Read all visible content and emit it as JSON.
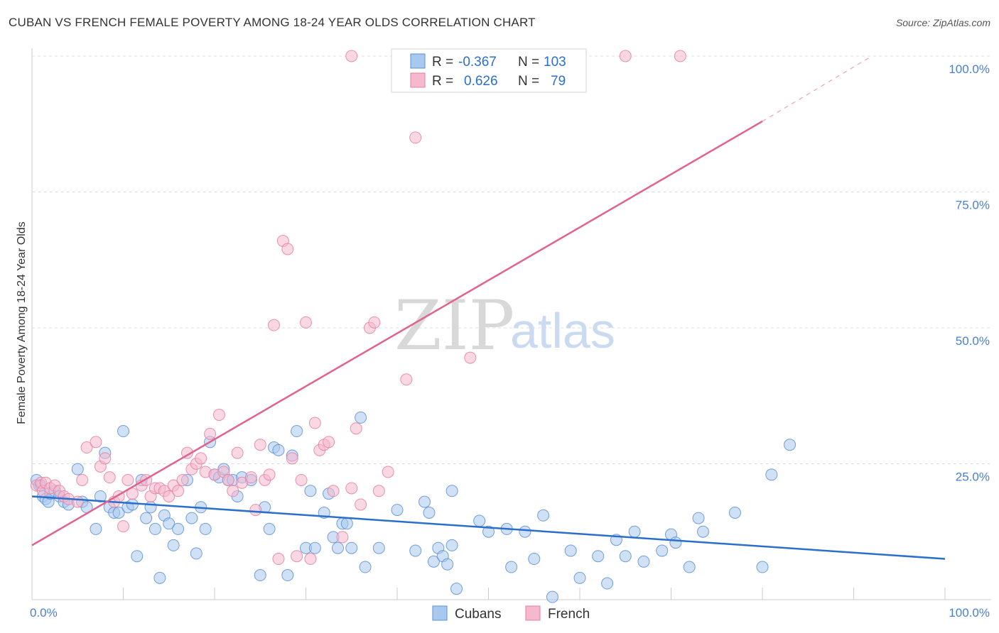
{
  "title": "CUBAN VS FRENCH FEMALE POVERTY AMONG 18-24 YEAR OLDS CORRELATION CHART",
  "source": "Source: ZipAtlas.com",
  "watermark": {
    "zip": "ZIP",
    "atlas": "atlas"
  },
  "colors": {
    "cubans_fill": "#a9c8ee",
    "cubans_stroke": "#5b8fd6",
    "cubans_line": "#2b6fcc",
    "french_fill": "#f5b8cc",
    "french_stroke": "#e57fa0",
    "french_line": "#e0628d",
    "tick_text": "#4a7fd0",
    "grid": "#dddddd"
  },
  "legend_top": {
    "rows": [
      {
        "r_label": "R =",
        "r_value": "-0.367",
        "n_label": "N =",
        "n_value": "103"
      },
      {
        "r_label": "R =",
        "r_value": "0.626",
        "n_label": "N =",
        "n_value": "79"
      }
    ]
  },
  "legend_bottom": {
    "items": [
      "Cubans",
      "French"
    ]
  },
  "chart_data": {
    "type": "scatter",
    "title": "CUBAN VS FRENCH FEMALE POVERTY AMONG 18-24 YEAR OLDS CORRELATION CHART",
    "xlabel": "",
    "ylabel": "Female Poverty Among 18-24 Year Olds",
    "xlim": [
      0,
      100
    ],
    "ylim": [
      0,
      100
    ],
    "x_tick_labels": [
      "0.0%",
      "100.0%"
    ],
    "y_tick_labels": [
      "25.0%",
      "50.0%",
      "75.0%",
      "100.0%"
    ],
    "y_ticks": [
      25,
      50,
      75,
      100
    ],
    "grid": true,
    "legend": "bottom-center",
    "series": [
      {
        "name": "Cubans",
        "R": -0.367,
        "N": 103,
        "trend": {
          "x": [
            0,
            100
          ],
          "y": [
            19,
            7.5
          ]
        },
        "points": [
          [
            0.5,
            22
          ],
          [
            0.8,
            21
          ],
          [
            1,
            21
          ],
          [
            1.2,
            19
          ],
          [
            1.5,
            18.5
          ],
          [
            1.8,
            18
          ],
          [
            2,
            19.5
          ],
          [
            2.5,
            20
          ],
          [
            3,
            19
          ],
          [
            3.5,
            18
          ],
          [
            4,
            17.5
          ],
          [
            5,
            24
          ],
          [
            5.5,
            18
          ],
          [
            6,
            17
          ],
          [
            7,
            13
          ],
          [
            7.5,
            19
          ],
          [
            8,
            27
          ],
          [
            8.5,
            17
          ],
          [
            9,
            16
          ],
          [
            9.5,
            16
          ],
          [
            10,
            31
          ],
          [
            10.5,
            17
          ],
          [
            11,
            17.5
          ],
          [
            11.5,
            8
          ],
          [
            12,
            22
          ],
          [
            12.5,
            15
          ],
          [
            13,
            17
          ],
          [
            13.5,
            13
          ],
          [
            14,
            4
          ],
          [
            14.5,
            15.5
          ],
          [
            15,
            14
          ],
          [
            15.5,
            10
          ],
          [
            16,
            13
          ],
          [
            17,
            22
          ],
          [
            17.5,
            15
          ],
          [
            18,
            8.5
          ],
          [
            18.5,
            17
          ],
          [
            19,
            13
          ],
          [
            19.5,
            29
          ],
          [
            20,
            23
          ],
          [
            20.5,
            22.5
          ],
          [
            21,
            24
          ],
          [
            21.5,
            22
          ],
          [
            22,
            22
          ],
          [
            22.5,
            19
          ],
          [
            23,
            22.5
          ],
          [
            24,
            22
          ],
          [
            25,
            4.5
          ],
          [
            25.5,
            17
          ],
          [
            26,
            13
          ],
          [
            26.5,
            28
          ],
          [
            27,
            27.5
          ],
          [
            28,
            4.5
          ],
          [
            28.5,
            26.5
          ],
          [
            29,
            31
          ],
          [
            30,
            9.5
          ],
          [
            30.5,
            20
          ],
          [
            31,
            9.5
          ],
          [
            32,
            16
          ],
          [
            32.5,
            19.5
          ],
          [
            33,
            11.5
          ],
          [
            33.5,
            9.5
          ],
          [
            34,
            14
          ],
          [
            34.5,
            14
          ],
          [
            35,
            9.5
          ],
          [
            36,
            33.5
          ],
          [
            36.5,
            6
          ],
          [
            38,
            9.5
          ],
          [
            40,
            16.5
          ],
          [
            42,
            9
          ],
          [
            43,
            18
          ],
          [
            43.5,
            16
          ],
          [
            44,
            7
          ],
          [
            44.5,
            9.5
          ],
          [
            45,
            8
          ],
          [
            45.5,
            6.5
          ],
          [
            46,
            20
          ],
          [
            46.5,
            2
          ],
          [
            49,
            14.5
          ],
          [
            50,
            12.5
          ],
          [
            52,
            13
          ],
          [
            52.5,
            6
          ],
          [
            54,
            12.5
          ],
          [
            55,
            7.5
          ],
          [
            56,
            15.5
          ],
          [
            57,
            0.5
          ],
          [
            59,
            9
          ],
          [
            60,
            4
          ],
          [
            62,
            8
          ],
          [
            63,
            3
          ],
          [
            64,
            11
          ],
          [
            65,
            8
          ],
          [
            66,
            12.5
          ],
          [
            67,
            7
          ],
          [
            69,
            9
          ],
          [
            70,
            12
          ],
          [
            70.5,
            10.5
          ],
          [
            72,
            6
          ],
          [
            73,
            15
          ],
          [
            73.5,
            12.5
          ],
          [
            77,
            16
          ],
          [
            80,
            6
          ],
          [
            81,
            23
          ],
          [
            83,
            28.5
          ],
          [
            46,
            10
          ]
        ]
      },
      {
        "name": "French",
        "R": 0.626,
        "N": 79,
        "trend": {
          "x": [
            0,
            80
          ],
          "y": [
            10,
            88
          ]
        },
        "trend_dashed": {
          "x": [
            80,
            92
          ],
          "y": [
            88,
            100
          ]
        },
        "points": [
          [
            0.5,
            21
          ],
          [
            1,
            21.5
          ],
          [
            1.2,
            20
          ],
          [
            1.5,
            21.5
          ],
          [
            2,
            20.5
          ],
          [
            2.5,
            21
          ],
          [
            3,
            20
          ],
          [
            3.5,
            19
          ],
          [
            4,
            18.5
          ],
          [
            5,
            18
          ],
          [
            5.5,
            22
          ],
          [
            6,
            28
          ],
          [
            7,
            29
          ],
          [
            7.5,
            24.5
          ],
          [
            8,
            26
          ],
          [
            8.5,
            22.5
          ],
          [
            9,
            18
          ],
          [
            9.5,
            19
          ],
          [
            10,
            13.5
          ],
          [
            10.5,
            22
          ],
          [
            11,
            19.5
          ],
          [
            12,
            21
          ],
          [
            12.5,
            22
          ],
          [
            13,
            19
          ],
          [
            13.5,
            20.5
          ],
          [
            14,
            20.5
          ],
          [
            14.5,
            20
          ],
          [
            15,
            19
          ],
          [
            15.5,
            21
          ],
          [
            16,
            20
          ],
          [
            16.5,
            22
          ],
          [
            17,
            27
          ],
          [
            17.5,
            24
          ],
          [
            18,
            25
          ],
          [
            18.5,
            26
          ],
          [
            19,
            23.5
          ],
          [
            19.5,
            30.5
          ],
          [
            20,
            23
          ],
          [
            20.5,
            34
          ],
          [
            21,
            23.5
          ],
          [
            21.5,
            22
          ],
          [
            22,
            20
          ],
          [
            22.5,
            27
          ],
          [
            23,
            21.5
          ],
          [
            24,
            22.5
          ],
          [
            24.5,
            16.5
          ],
          [
            25,
            28.5
          ],
          [
            25.5,
            22
          ],
          [
            26,
            23
          ],
          [
            26.5,
            50.5
          ],
          [
            27,
            7.5
          ],
          [
            27.5,
            66
          ],
          [
            28,
            64.5
          ],
          [
            28.5,
            26
          ],
          [
            29,
            8
          ],
          [
            29.5,
            22
          ],
          [
            30,
            51
          ],
          [
            30.5,
            7.5
          ],
          [
            31,
            32.5
          ],
          [
            31.5,
            27.5
          ],
          [
            32,
            28.5
          ],
          [
            32.5,
            29
          ],
          [
            33,
            20
          ],
          [
            34,
            11.5
          ],
          [
            35,
            20.5
          ],
          [
            35.5,
            31.5
          ],
          [
            36,
            17.5
          ],
          [
            37,
            50
          ],
          [
            37.5,
            51
          ],
          [
            38,
            20
          ],
          [
            39,
            23.5
          ],
          [
            41,
            40.5
          ],
          [
            42,
            85
          ],
          [
            43,
            100
          ],
          [
            45,
            100
          ],
          [
            48,
            44.5
          ],
          [
            65,
            100
          ],
          [
            71,
            100
          ],
          [
            35,
            100
          ]
        ]
      }
    ]
  }
}
